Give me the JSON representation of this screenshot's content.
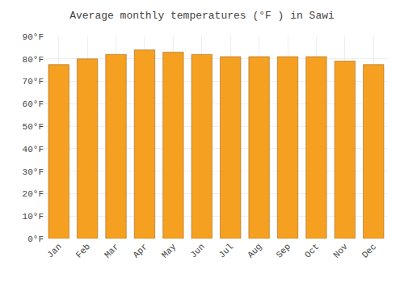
{
  "chart_data": {
    "type": "bar",
    "title": "Average monthly temperatures (°F ) in Sawi",
    "categories": [
      "Jan",
      "Feb",
      "Mar",
      "Apr",
      "May",
      "Jun",
      "Jul",
      "Aug",
      "Sep",
      "Oct",
      "Nov",
      "Dec"
    ],
    "values": [
      77.5,
      80.0,
      82.0,
      84.0,
      83.0,
      82.0,
      81.0,
      81.0,
      81.0,
      81.0,
      79.0,
      77.5
    ],
    "color": "#F5A020",
    "ylim": [
      0,
      90
    ],
    "yticks": [
      {
        "value": 0,
        "label": "0°F"
      },
      {
        "value": 10,
        "label": "10°F"
      },
      {
        "value": 20,
        "label": "20°F"
      },
      {
        "value": 30,
        "label": "30°F"
      },
      {
        "value": 40,
        "label": "40°F"
      },
      {
        "value": 50,
        "label": "50°F"
      },
      {
        "value": 60,
        "label": "60°F"
      },
      {
        "value": 70,
        "label": "70°F"
      },
      {
        "value": 80,
        "label": "80°F"
      },
      {
        "value": 90,
        "label": "90°F"
      }
    ],
    "grid": true
  }
}
